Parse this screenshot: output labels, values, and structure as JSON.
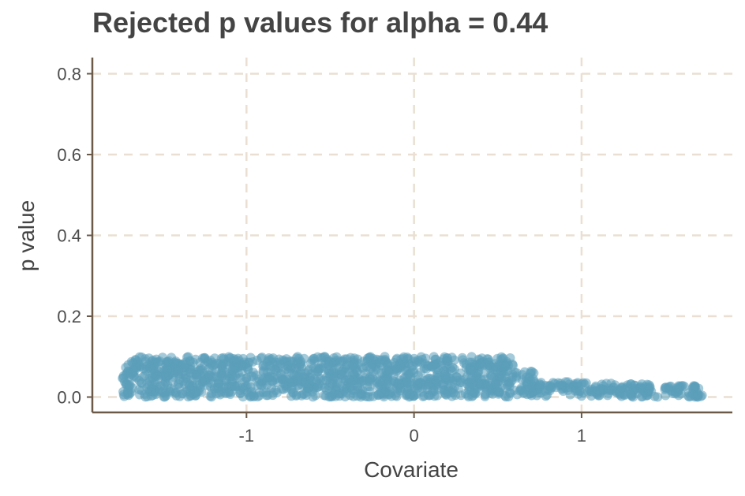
{
  "chart_data": {
    "type": "scatter",
    "title": "Rejected p values for alpha = 0.44",
    "xlabel": "Covariate",
    "ylabel": "p value",
    "xlim": [
      -1.92,
      1.9
    ],
    "ylim": [
      -0.038,
      0.84
    ],
    "x_ticks": [
      -1,
      0,
      1
    ],
    "x_tick_labels": [
      "-1",
      "0",
      "1"
    ],
    "y_ticks": [
      0.0,
      0.2,
      0.4,
      0.6,
      0.8
    ],
    "y_tick_labels": [
      "0.0",
      "0.2",
      "0.4",
      "0.6",
      "0.8"
    ],
    "grid": true,
    "legend": "none",
    "point_color": "#5b9fba",
    "axis_color": "#6b5a48",
    "grid_color": "#eadfd2",
    "point_bands": [
      {
        "x_from": -1.74,
        "x_to": 0.6,
        "y_from": 0.0,
        "y_to": 0.1
      },
      {
        "x_from": 0.6,
        "x_to": 0.72,
        "y_from": 0.0,
        "y_to": 0.07
      },
      {
        "x_from": 0.72,
        "x_to": 1.72,
        "y_from": 0.0,
        "y_to": 0.04
      }
    ]
  }
}
